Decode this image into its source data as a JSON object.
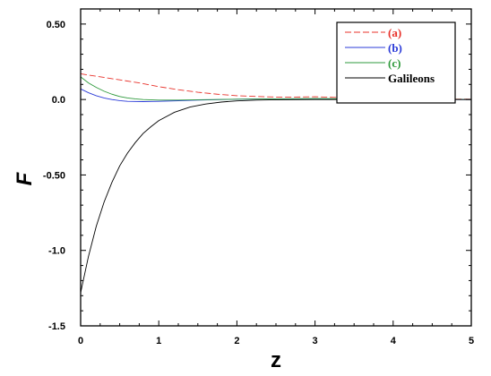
{
  "chart_data": {
    "type": "line",
    "title": "",
    "xlabel": "z",
    "ylabel": "F",
    "xlim": [
      0,
      5
    ],
    "ylim": [
      -1.5,
      0.6
    ],
    "grid": false,
    "legend_position": "top-right",
    "x_ticks": [
      0,
      1,
      2,
      3,
      4,
      5
    ],
    "x_tick_labels": [
      "0",
      "1",
      "2",
      "3",
      "4",
      "5"
    ],
    "y_ticks": [
      0.5,
      0.0,
      -0.5,
      -1.0,
      -1.5
    ],
    "y_tick_labels": [
      "0.50",
      "0.0",
      "-0.50",
      "-1.0",
      "-1.5"
    ],
    "series": [
      {
        "name": "(a)",
        "color": "#e8312a",
        "dashed": true,
        "x": [
          0,
          0.25,
          0.5,
          0.75,
          1.0,
          1.25,
          1.5,
          1.75,
          2.0,
          2.25,
          2.5,
          2.75,
          3.0,
          3.25,
          3.5,
          3.75,
          4.0,
          4.25,
          4.5,
          4.75,
          5.0
        ],
        "y": [
          0.17,
          0.15,
          0.13,
          0.11,
          0.085,
          0.065,
          0.048,
          0.035,
          0.025,
          0.02,
          0.016,
          0.016,
          0.018,
          0.014,
          0.008,
          0.006,
          0.006,
          0.005,
          0.004,
          0.003,
          0.002
        ]
      },
      {
        "name": "(b)",
        "color": "#2b3bd8",
        "dashed": false,
        "x": [
          0,
          0.1,
          0.2,
          0.3,
          0.4,
          0.5,
          0.6,
          0.8,
          1.0,
          1.25,
          1.5,
          1.75,
          2.0,
          2.5,
          3.0,
          3.5,
          4.0,
          4.5,
          5.0
        ],
        "y": [
          0.07,
          0.045,
          0.025,
          0.01,
          0.0,
          -0.008,
          -0.012,
          -0.014,
          -0.012,
          -0.008,
          -0.004,
          -0.001,
          0.002,
          0.004,
          0.004,
          0.002,
          0.001,
          0.0,
          0.0
        ]
      },
      {
        "name": "(c)",
        "color": "#2e9a3c",
        "dashed": false,
        "x": [
          0,
          0.1,
          0.2,
          0.3,
          0.4,
          0.5,
          0.6,
          0.7,
          0.8,
          1.0,
          1.25,
          1.5,
          2.0,
          2.5,
          3.0,
          3.5,
          4.0,
          4.5,
          5.0
        ],
        "y": [
          0.15,
          0.11,
          0.08,
          0.055,
          0.035,
          0.02,
          0.01,
          0.004,
          0.0,
          -0.004,
          -0.004,
          -0.002,
          0.002,
          0.004,
          0.006,
          0.004,
          0.002,
          0.001,
          0.0
        ],
        "light_trailing_x_from": 1.5
      },
      {
        "name": "Galileons",
        "color": "#000000",
        "dashed": false,
        "x": [
          0,
          0.1,
          0.2,
          0.3,
          0.4,
          0.5,
          0.6,
          0.7,
          0.8,
          0.9,
          1.0,
          1.2,
          1.4,
          1.6,
          1.8,
          2.0,
          2.25,
          2.5,
          3.0,
          3.5,
          4.0,
          4.5,
          5.0
        ],
        "y": [
          -1.28,
          -1.04,
          -0.84,
          -0.68,
          -0.55,
          -0.44,
          -0.355,
          -0.285,
          -0.225,
          -0.18,
          -0.14,
          -0.085,
          -0.05,
          -0.03,
          -0.017,
          -0.009,
          -0.004,
          -0.002,
          0.0,
          0.0,
          0.0,
          0.0,
          0.0
        ]
      }
    ]
  }
}
